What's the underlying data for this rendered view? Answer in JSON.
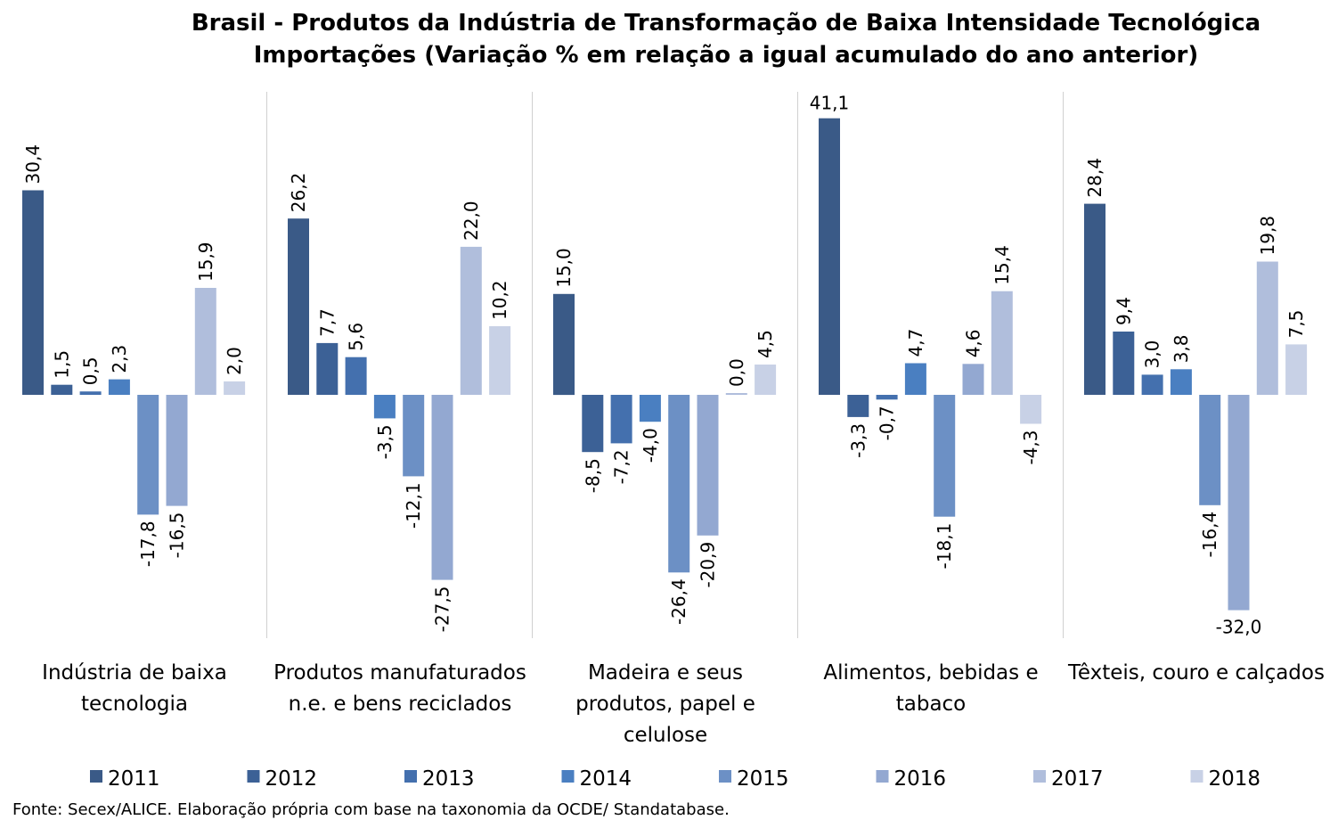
{
  "chart_data": {
    "type": "bar",
    "title": [
      "Brasil - Produtos da Indústria de Transformação de Baixa Intensidade Tecnológica",
      "Importações (Variação % em relação a igual acumulado do ano anterior)"
    ],
    "categories": [
      [
        "Indústria de baixa",
        "tecnologia"
      ],
      [
        "Produtos manufaturados",
        "n.e. e bens reciclados"
      ],
      [
        "Madeira e seus",
        "produtos, papel e",
        "celulose"
      ],
      [
        "Alimentos, bebidas e",
        "tabaco"
      ],
      [
        "Têxteis, couro e calçados"
      ]
    ],
    "series": [
      {
        "name": "2011",
        "color": "#3a5a87",
        "values": [
          30.4,
          26.2,
          15.0,
          41.1,
          28.4
        ]
      },
      {
        "name": "2012",
        "color": "#3c6196",
        "values": [
          1.5,
          7.7,
          -8.5,
          -3.3,
          9.4
        ]
      },
      {
        "name": "2013",
        "color": "#4470ae",
        "values": [
          0.5,
          5.6,
          -7.2,
          -0.7,
          3.0
        ]
      },
      {
        "name": "2014",
        "color": "#4a7fc1",
        "values": [
          2.3,
          -3.5,
          -4.0,
          4.7,
          3.8
        ]
      },
      {
        "name": "2015",
        "color": "#6c90c5",
        "values": [
          -17.8,
          -12.1,
          -26.4,
          -18.1,
          -16.4
        ]
      },
      {
        "name": "2016",
        "color": "#93a8d1",
        "values": [
          -16.5,
          -27.5,
          -20.9,
          4.6,
          -32.0
        ]
      },
      {
        "name": "2017",
        "color": "#b0bedc",
        "values": [
          15.9,
          22.0,
          0.0,
          15.4,
          19.8
        ]
      },
      {
        "name": "2018",
        "color": "#c8d1e6",
        "values": [
          2.0,
          10.2,
          4.5,
          -4.3,
          7.5
        ]
      }
    ],
    "value_format": "decimal-comma-1",
    "legend_position": "bottom",
    "grid": false,
    "ylim": [
      -36,
      45
    ],
    "source": "Fonte: Secex/ALICE. Elaboração própria com base na taxonomia da OCDE/ Standatabase."
  }
}
